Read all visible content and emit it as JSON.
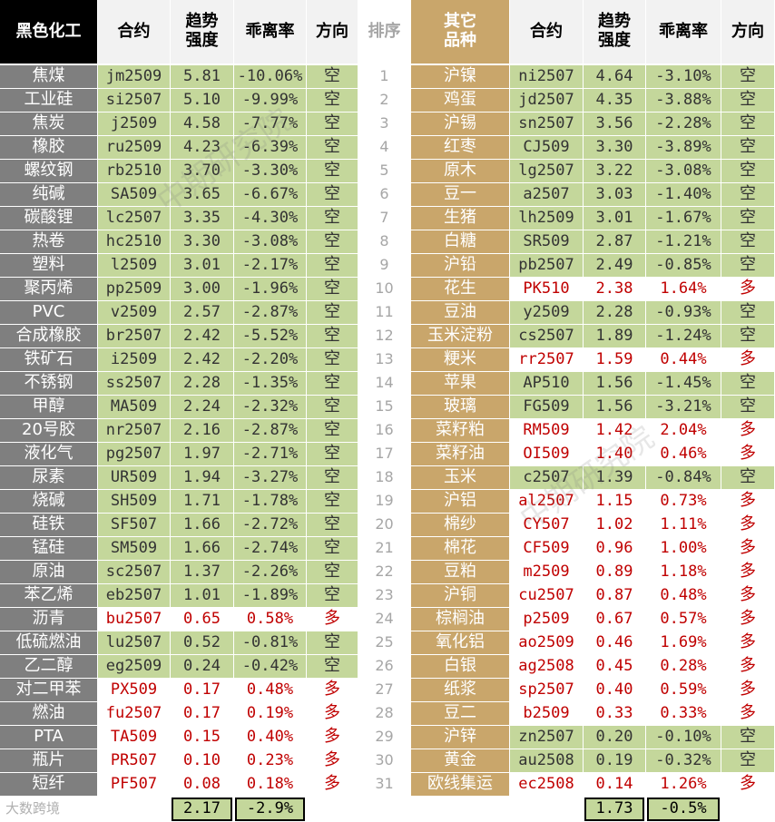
{
  "left": {
    "header": [
      "黑色化工",
      "合约",
      "趋势\n强度",
      "乖离率",
      "方向"
    ],
    "rows": [
      {
        "cells": [
          "焦煤",
          "jm2509",
          "5.81",
          "-10.06%",
          "空"
        ],
        "bg": "#c4d79b",
        "fg": "#333333"
      },
      {
        "cells": [
          "工业硅",
          "si2507",
          "5.10",
          "-9.99%",
          "空"
        ],
        "bg": "#c4d79b",
        "fg": "#333333"
      },
      {
        "cells": [
          "焦炭",
          "j2509",
          "4.58",
          "-7.77%",
          "空"
        ],
        "bg": "#c4d79b",
        "fg": "#333333"
      },
      {
        "cells": [
          "橡胶",
          "ru2509",
          "4.23",
          "-6.39%",
          "空"
        ],
        "bg": "#c4d79b",
        "fg": "#333333"
      },
      {
        "cells": [
          "螺纹钢",
          "rb2510",
          "3.70",
          "-3.30%",
          "空"
        ],
        "bg": "#c4d79b",
        "fg": "#333333"
      },
      {
        "cells": [
          "纯碱",
          "SA509",
          "3.65",
          "-6.67%",
          "空"
        ],
        "bg": "#c4d79b",
        "fg": "#333333"
      },
      {
        "cells": [
          "碳酸锂",
          "lc2507",
          "3.35",
          "-4.30%",
          "空"
        ],
        "bg": "#c4d79b",
        "fg": "#333333"
      },
      {
        "cells": [
          "热卷",
          "hc2510",
          "3.30",
          "-3.08%",
          "空"
        ],
        "bg": "#c4d79b",
        "fg": "#333333"
      },
      {
        "cells": [
          "塑料",
          "l2509",
          "3.01",
          "-2.17%",
          "空"
        ],
        "bg": "#c4d79b",
        "fg": "#333333"
      },
      {
        "cells": [
          "聚丙烯",
          "pp2509",
          "3.00",
          "-1.96%",
          "空"
        ],
        "bg": "#c4d79b",
        "fg": "#333333"
      },
      {
        "cells": [
          "PVC",
          "v2509",
          "2.57",
          "-2.87%",
          "空"
        ],
        "bg": "#c4d79b",
        "fg": "#333333"
      },
      {
        "cells": [
          "合成橡胶",
          "br2507",
          "2.42",
          "-5.52%",
          "空"
        ],
        "bg": "#c4d79b",
        "fg": "#333333"
      },
      {
        "cells": [
          "铁矿石",
          "i2509",
          "2.42",
          "-2.20%",
          "空"
        ],
        "bg": "#c4d79b",
        "fg": "#333333"
      },
      {
        "cells": [
          "不锈钢",
          "ss2507",
          "2.28",
          "-1.35%",
          "空"
        ],
        "bg": "#c4d79b",
        "fg": "#333333"
      },
      {
        "cells": [
          "甲醇",
          "MA509",
          "2.24",
          "-2.32%",
          "空"
        ],
        "bg": "#c4d79b",
        "fg": "#333333"
      },
      {
        "cells": [
          "20号胶",
          "nr2507",
          "2.16",
          "-2.87%",
          "空"
        ],
        "bg": "#c4d79b",
        "fg": "#333333"
      },
      {
        "cells": [
          "液化气",
          "pg2507",
          "1.97",
          "-2.71%",
          "空"
        ],
        "bg": "#c4d79b",
        "fg": "#333333"
      },
      {
        "cells": [
          "尿素",
          "UR509",
          "1.94",
          "-3.27%",
          "空"
        ],
        "bg": "#c4d79b",
        "fg": "#333333"
      },
      {
        "cells": [
          "烧碱",
          "SH509",
          "1.71",
          "-1.78%",
          "空"
        ],
        "bg": "#c4d79b",
        "fg": "#333333"
      },
      {
        "cells": [
          "硅铁",
          "SF507",
          "1.66",
          "-2.72%",
          "空"
        ],
        "bg": "#c4d79b",
        "fg": "#333333"
      },
      {
        "cells": [
          "锰硅",
          "SM509",
          "1.66",
          "-2.74%",
          "空"
        ],
        "bg": "#c4d79b",
        "fg": "#333333"
      },
      {
        "cells": [
          "原油",
          "sc2507",
          "1.37",
          "-2.26%",
          "空"
        ],
        "bg": "#c4d79b",
        "fg": "#333333"
      },
      {
        "cells": [
          "苯乙烯",
          "eb2507",
          "1.01",
          "-1.89%",
          "空"
        ],
        "bg": "#c4d79b",
        "fg": "#333333"
      },
      {
        "cells": [
          "沥青",
          "bu2507",
          "0.65",
          "0.58%",
          "多"
        ],
        "bg": "#ffffff",
        "fg": "#c00000"
      },
      {
        "cells": [
          "低硫燃油",
          "lu2507",
          "0.52",
          "-0.81%",
          "空"
        ],
        "bg": "#c4d79b",
        "fg": "#333333"
      },
      {
        "cells": [
          "乙二醇",
          "eg2509",
          "0.24",
          "-0.42%",
          "空"
        ],
        "bg": "#c4d79b",
        "fg": "#333333"
      },
      {
        "cells": [
          "对二甲苯",
          "PX509",
          "0.17",
          "0.48%",
          "多"
        ],
        "bg": "#ffffff",
        "fg": "#c00000"
      },
      {
        "cells": [
          "燃油",
          "fu2507",
          "0.17",
          "0.19%",
          "多"
        ],
        "bg": "#ffffff",
        "fg": "#c00000"
      },
      {
        "cells": [
          "PTA",
          "TA509",
          "0.15",
          "0.40%",
          "多"
        ],
        "bg": "#ffffff",
        "fg": "#c00000"
      },
      {
        "cells": [
          "瓶片",
          "PR507",
          "0.10",
          "0.23%",
          "多"
        ],
        "bg": "#ffffff",
        "fg": "#c00000"
      },
      {
        "cells": [
          "短纤",
          "PF507",
          "0.08",
          "0.18%",
          "多"
        ],
        "bg": "#ffffff",
        "fg": "#c00000"
      }
    ],
    "footer": [
      "2.17",
      "-2.9%"
    ]
  },
  "rank": {
    "header": "排序",
    "values": [
      "1",
      "2",
      "3",
      "4",
      "5",
      "6",
      "7",
      "8",
      "9",
      "10",
      "11",
      "12",
      "13",
      "14",
      "15",
      "16",
      "17",
      "18",
      "19",
      "20",
      "21",
      "22",
      "23",
      "24",
      "25",
      "26",
      "27",
      "28",
      "29",
      "30",
      "31"
    ]
  },
  "right": {
    "header": [
      "其它\n品种",
      "合约",
      "趋势\n强度",
      "乖离率",
      "方向"
    ],
    "rows": [
      {
        "cells": [
          "沪镍",
          "ni2507",
          "4.64",
          "-3.10%",
          "空"
        ],
        "bg": "#c4d79b",
        "fg": "#333333"
      },
      {
        "cells": [
          "鸡蛋",
          "jd2507",
          "4.35",
          "-3.88%",
          "空"
        ],
        "bg": "#c4d79b",
        "fg": "#333333"
      },
      {
        "cells": [
          "沪锡",
          "sn2507",
          "3.56",
          "-2.28%",
          "空"
        ],
        "bg": "#c4d79b",
        "fg": "#333333"
      },
      {
        "cells": [
          "红枣",
          "CJ509",
          "3.30",
          "-3.89%",
          "空"
        ],
        "bg": "#c4d79b",
        "fg": "#333333"
      },
      {
        "cells": [
          "原木",
          "lg2507",
          "3.22",
          "-3.08%",
          "空"
        ],
        "bg": "#c4d79b",
        "fg": "#333333"
      },
      {
        "cells": [
          "豆一",
          "a2507",
          "3.03",
          "-1.40%",
          "空"
        ],
        "bg": "#c4d79b",
        "fg": "#333333"
      },
      {
        "cells": [
          "生猪",
          "lh2509",
          "3.01",
          "-1.67%",
          "空"
        ],
        "bg": "#c4d79b",
        "fg": "#333333"
      },
      {
        "cells": [
          "白糖",
          "SR509",
          "2.87",
          "-1.21%",
          "空"
        ],
        "bg": "#c4d79b",
        "fg": "#333333"
      },
      {
        "cells": [
          "沪铅",
          "pb2507",
          "2.49",
          "-0.85%",
          "空"
        ],
        "bg": "#c4d79b",
        "fg": "#333333"
      },
      {
        "cells": [
          "花生",
          "PK510",
          "2.38",
          "1.64%",
          "多"
        ],
        "bg": "#ffffff",
        "fg": "#c00000"
      },
      {
        "cells": [
          "豆油",
          "y2509",
          "2.28",
          "-0.93%",
          "空"
        ],
        "bg": "#c4d79b",
        "fg": "#333333"
      },
      {
        "cells": [
          "玉米淀粉",
          "cs2507",
          "1.89",
          "-1.24%",
          "空"
        ],
        "bg": "#c4d79b",
        "fg": "#333333"
      },
      {
        "cells": [
          "粳米",
          "rr2507",
          "1.59",
          "0.44%",
          "多"
        ],
        "bg": "#ffffff",
        "fg": "#c00000"
      },
      {
        "cells": [
          "苹果",
          "AP510",
          "1.56",
          "-1.45%",
          "空"
        ],
        "bg": "#c4d79b",
        "fg": "#333333"
      },
      {
        "cells": [
          "玻璃",
          "FG509",
          "1.56",
          "-3.21%",
          "空"
        ],
        "bg": "#c4d79b",
        "fg": "#333333"
      },
      {
        "cells": [
          "菜籽粕",
          "RM509",
          "1.42",
          "2.04%",
          "多"
        ],
        "bg": "#ffffff",
        "fg": "#c00000"
      },
      {
        "cells": [
          "菜籽油",
          "OI509",
          "1.40",
          "0.46%",
          "多"
        ],
        "bg": "#ffffff",
        "fg": "#c00000"
      },
      {
        "cells": [
          "玉米",
          "c2507",
          "1.39",
          "-0.84%",
          "空"
        ],
        "bg": "#c4d79b",
        "fg": "#333333"
      },
      {
        "cells": [
          "沪铝",
          "al2507",
          "1.15",
          "0.73%",
          "多"
        ],
        "bg": "#ffffff",
        "fg": "#c00000"
      },
      {
        "cells": [
          "棉纱",
          "CY507",
          "1.02",
          "1.11%",
          "多"
        ],
        "bg": "#ffffff",
        "fg": "#c00000"
      },
      {
        "cells": [
          "棉花",
          "CF509",
          "0.96",
          "1.00%",
          "多"
        ],
        "bg": "#ffffff",
        "fg": "#c00000"
      },
      {
        "cells": [
          "豆粕",
          "m2509",
          "0.89",
          "1.18%",
          "多"
        ],
        "bg": "#ffffff",
        "fg": "#c00000"
      },
      {
        "cells": [
          "沪铜",
          "cu2507",
          "0.87",
          "0.48%",
          "多"
        ],
        "bg": "#ffffff",
        "fg": "#c00000"
      },
      {
        "cells": [
          "棕榈油",
          "p2509",
          "0.67",
          "0.57%",
          "多"
        ],
        "bg": "#ffffff",
        "fg": "#c00000"
      },
      {
        "cells": [
          "氧化铝",
          "ao2509",
          "0.46",
          "1.69%",
          "多"
        ],
        "bg": "#ffffff",
        "fg": "#c00000"
      },
      {
        "cells": [
          "白银",
          "ag2508",
          "0.45",
          "0.28%",
          "多"
        ],
        "bg": "#ffffff",
        "fg": "#c00000"
      },
      {
        "cells": [
          "纸浆",
          "sp2507",
          "0.40",
          "0.59%",
          "多"
        ],
        "bg": "#ffffff",
        "fg": "#c00000"
      },
      {
        "cells": [
          "豆二",
          "b2509",
          "0.33",
          "0.33%",
          "多"
        ],
        "bg": "#ffffff",
        "fg": "#c00000"
      },
      {
        "cells": [
          "沪锌",
          "zn2507",
          "0.20",
          "-0.10%",
          "空"
        ],
        "bg": "#c4d79b",
        "fg": "#333333"
      },
      {
        "cells": [
          "黄金",
          "au2508",
          "0.19",
          "-0.32%",
          "空"
        ],
        "bg": "#c4d79b",
        "fg": "#333333"
      },
      {
        "cells": [
          "欧线集运",
          "ec2508",
          "0.14",
          "1.26%",
          "多"
        ],
        "bg": "#ffffff",
        "fg": "#c00000"
      }
    ],
    "footer": [
      "1.73",
      "-0.5%"
    ]
  },
  "watermarks": [
    "中期研究院",
    "大数跨境"
  ]
}
